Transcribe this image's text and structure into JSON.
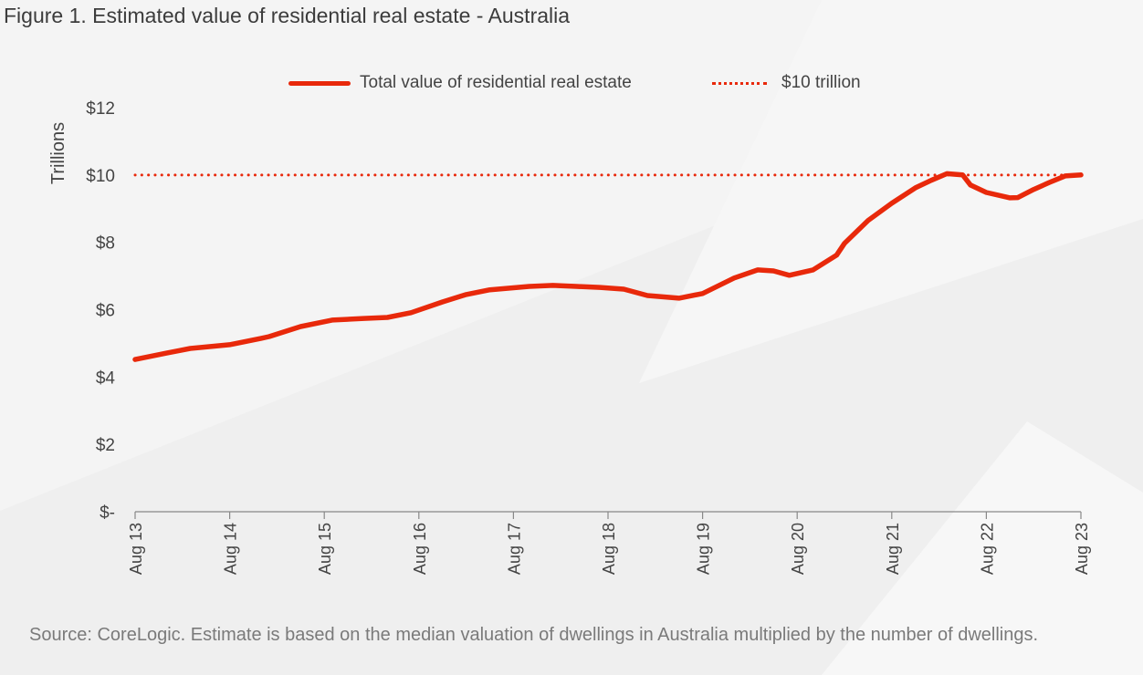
{
  "title": "Figure 1. Estimated value of residential real estate - Australia",
  "source": "Source: CoreLogic. Estimate is based on the median valuation of dwellings in Australia multiplied by the number of dwellings.",
  "chart_data": {
    "type": "line",
    "title": "Figure 1. Estimated value of residential real estate - Australia",
    "ylabel": "Trillions",
    "ylim": [
      0,
      12
    ],
    "yticks": [
      0,
      2,
      4,
      6,
      8,
      10,
      12
    ],
    "ytick_labels": [
      "$-",
      "$2",
      "$4",
      "$6",
      "$8",
      "$10",
      "$12"
    ],
    "xlim": [
      "2013-08",
      "2023-08"
    ],
    "xtick_labels": [
      "Aug 13",
      "Aug 14",
      "Aug 15",
      "Aug 16",
      "Aug 17",
      "Aug 18",
      "Aug 19",
      "Aug 20",
      "Aug 21",
      "Aug 22",
      "Aug 23"
    ],
    "grid": false,
    "legend": "top",
    "colors": {
      "line": "#e8290b",
      "reference": "#e8290b"
    },
    "series": [
      {
        "name": "Total value of residential real estate",
        "x": [
          "2013-08",
          "2013-12",
          "2014-03",
          "2014-08",
          "2014-12",
          "2015-01",
          "2015-05",
          "2015-09",
          "2016-01",
          "2016-04",
          "2016-07",
          "2016-11",
          "2017-02",
          "2017-05",
          "2017-10",
          "2018-01",
          "2018-04",
          "2018-07",
          "2018-10",
          "2019-01",
          "2019-05",
          "2019-08",
          "2019-12",
          "2020-03",
          "2020-05",
          "2020-07",
          "2020-10",
          "2021-01",
          "2021-02",
          "2021-05",
          "2021-08",
          "2021-11",
          "2022-01",
          "2022-03",
          "2022-05",
          "2022-06",
          "2022-08",
          "2022-11",
          "2022-12",
          "2023-02",
          "2023-04",
          "2023-06",
          "2023-08"
        ],
        "values": [
          4.52,
          4.71,
          4.85,
          4.96,
          5.15,
          5.2,
          5.5,
          5.69,
          5.74,
          5.77,
          5.91,
          6.23,
          6.45,
          6.59,
          6.69,
          6.72,
          6.69,
          6.66,
          6.61,
          6.42,
          6.34,
          6.48,
          6.94,
          7.18,
          7.15,
          7.02,
          7.18,
          7.62,
          7.97,
          8.65,
          9.16,
          9.62,
          9.84,
          10.04,
          10.0,
          9.7,
          9.48,
          9.32,
          9.33,
          9.57,
          9.78,
          9.97,
          10.0
        ]
      },
      {
        "name": "$10 trillion",
        "x": [
          "2013-08",
          "2023-08"
        ],
        "values": [
          10,
          10
        ],
        "style": "dotted"
      }
    ]
  }
}
